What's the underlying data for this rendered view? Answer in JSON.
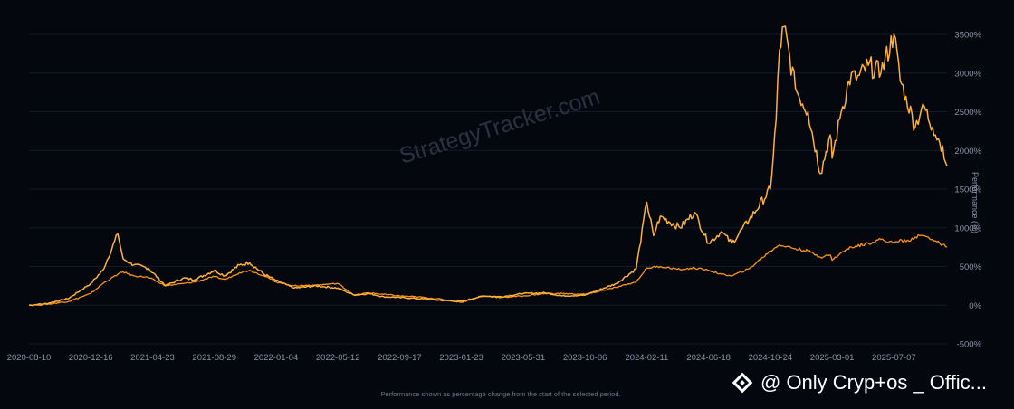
{
  "watermark": "StrategyTracker.com",
  "footnote": "Performance shown as percentage change from the start of the selected period.",
  "overlay": {
    "icon": "binance-diamond-icon",
    "text": "@ Only Cryp+os _ Offic..."
  },
  "colors": {
    "background": "#05070f",
    "series_primary": "#f7931a",
    "series_secondary": "#fcb13b",
    "grid": "#151a2a",
    "text": "#8b93a7"
  },
  "chart_data": {
    "type": "line",
    "title": "",
    "xlabel": "",
    "ylabel": "Performance (%)",
    "ylim": [
      -500,
      3500
    ],
    "y_ticks": [
      3500,
      3000,
      2500,
      2000,
      1500,
      1000,
      500,
      0,
      -500
    ],
    "y_tick_labels": [
      "3500%",
      "3000%",
      "2500%",
      "2000%",
      "1500%",
      "1000%",
      "500%",
      "0%",
      "-500%"
    ],
    "x_tick_labels": [
      "2020-08-10",
      "2020-12-16",
      "2021-04-23",
      "2021-08-29",
      "2022-01-04",
      "2022-05-12",
      "2022-09-17",
      "2023-01-23",
      "2023-05-31",
      "2023-10-06",
      "2024-02-11",
      "2024-06-18",
      "2024-10-24",
      "2025-03-01",
      "2025-07-07"
    ],
    "grid": true,
    "legend": "none",
    "series": [
      {
        "x": [
          "2020-08-10",
          "2020-09-15",
          "2020-11-01",
          "2020-12-16",
          "2021-01-10",
          "2021-02-10",
          "2021-02-21",
          "2021-03-15",
          "2021-04-14",
          "2021-05-20",
          "2021-06-25",
          "2021-07-20",
          "2021-08-29",
          "2021-09-20",
          "2021-10-20",
          "2021-11-10",
          "2021-12-10",
          "2022-01-04",
          "2022-02-10",
          "2022-03-28",
          "2022-05-12",
          "2022-06-15",
          "2022-07-15",
          "2022-08-15",
          "2022-09-17",
          "2022-11-10",
          "2022-12-20",
          "2023-01-23",
          "2023-03-10",
          "2023-04-15",
          "2023-05-31",
          "2023-07-15",
          "2023-08-20",
          "2023-10-06",
          "2023-12-10",
          "2024-01-20",
          "2024-02-11",
          "2024-02-25",
          "2024-03-10",
          "2024-04-20",
          "2024-05-20",
          "2024-06-18",
          "2024-07-15",
          "2024-08-05",
          "2024-09-10",
          "2024-10-24",
          "2024-11-05",
          "2024-11-12",
          "2024-11-21",
          "2024-12-15",
          "2025-01-10",
          "2025-02-05",
          "2025-02-25",
          "2025-03-01",
          "2025-03-20",
          "2025-04-10",
          "2025-04-20",
          "2025-05-15",
          "2025-06-10",
          "2025-07-07",
          "2025-07-20",
          "2025-08-01",
          "2025-08-20",
          "2025-09-05",
          "2025-09-25",
          "2025-10-10",
          "2025-10-25"
        ],
        "values": [
          0,
          20,
          90,
          280,
          450,
          920,
          600,
          520,
          480,
          250,
          350,
          330,
          450,
          380,
          520,
          550,
          400,
          320,
          220,
          250,
          220,
          130,
          150,
          110,
          100,
          80,
          60,
          50,
          120,
          110,
          150,
          160,
          120,
          130,
          280,
          470,
          1330,
          900,
          1150,
          1000,
          1200,
          800,
          950,
          800,
          1100,
          1500,
          2400,
          3300,
          3600,
          2800,
          2500,
          1700,
          2200,
          1900,
          2500,
          3000,
          2900,
          3100,
          3000,
          3500,
          2900,
          2700,
          2300,
          2600,
          2300,
          2100,
          1800
        ]
      },
      {
        "x": [
          "2020-08-10",
          "2020-09-15",
          "2020-11-01",
          "2020-12-16",
          "2021-01-10",
          "2021-02-10",
          "2021-02-21",
          "2021-03-15",
          "2021-04-14",
          "2021-05-20",
          "2021-06-25",
          "2021-07-20",
          "2021-08-29",
          "2021-09-20",
          "2021-10-20",
          "2021-11-10",
          "2021-12-10",
          "2022-01-04",
          "2022-02-10",
          "2022-03-28",
          "2022-05-12",
          "2022-06-15",
          "2022-07-15",
          "2022-08-15",
          "2022-09-17",
          "2022-11-10",
          "2022-12-20",
          "2023-01-23",
          "2023-03-10",
          "2023-04-15",
          "2023-05-31",
          "2023-07-15",
          "2023-08-20",
          "2023-10-06",
          "2023-12-10",
          "2024-01-20",
          "2024-02-11",
          "2024-03-10",
          "2024-04-20",
          "2024-05-20",
          "2024-06-18",
          "2024-07-15",
          "2024-08-05",
          "2024-09-10",
          "2024-10-24",
          "2024-11-12",
          "2024-12-15",
          "2025-01-10",
          "2025-02-05",
          "2025-02-25",
          "2025-03-01",
          "2025-03-20",
          "2025-04-10",
          "2025-05-15",
          "2025-06-10",
          "2025-07-07",
          "2025-07-20",
          "2025-08-01",
          "2025-08-20",
          "2025-09-05",
          "2025-09-25",
          "2025-10-10",
          "2025-10-25"
        ],
        "values": [
          0,
          10,
          50,
          150,
          280,
          400,
          430,
          380,
          360,
          250,
          280,
          300,
          370,
          330,
          420,
          450,
          380,
          300,
          250,
          260,
          280,
          130,
          160,
          140,
          120,
          100,
          70,
          40,
          120,
          100,
          120,
          150,
          150,
          140,
          230,
          300,
          480,
          500,
          460,
          480,
          450,
          400,
          380,
          470,
          700,
          780,
          730,
          700,
          620,
          650,
          580,
          680,
          750,
          800,
          850,
          800,
          850,
          820,
          880,
          900,
          850,
          800,
          750
        ]
      }
    ]
  }
}
